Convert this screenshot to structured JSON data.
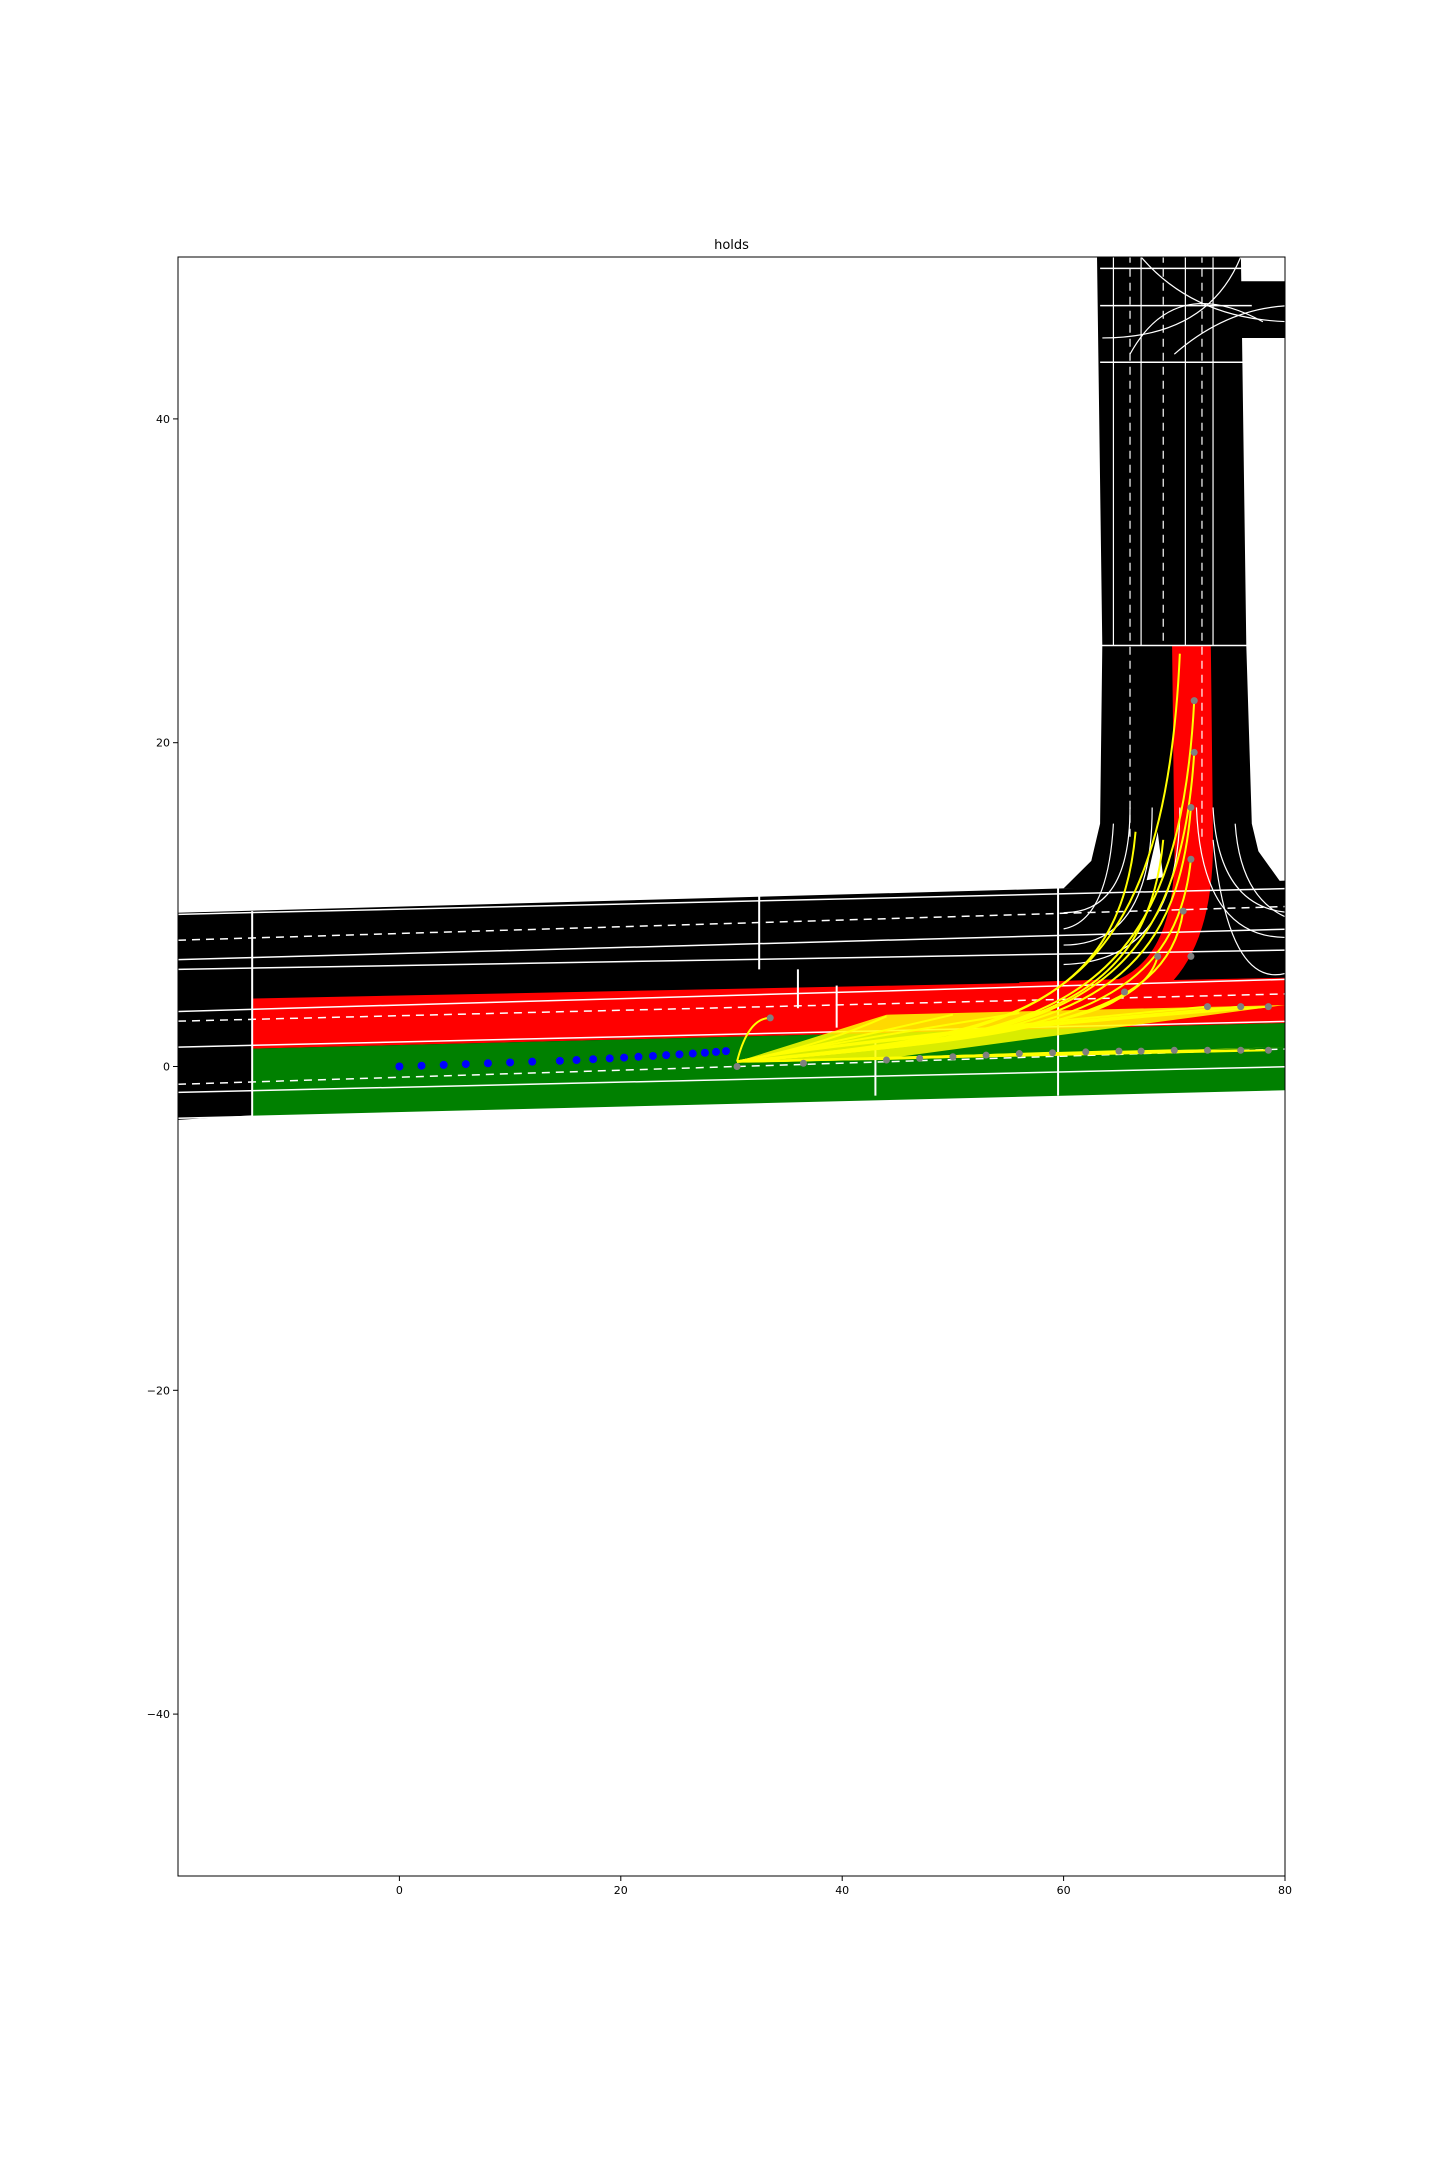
{
  "chart_data": {
    "type": "scatter",
    "title": "holds",
    "xlabel": "",
    "ylabel": "",
    "xlim": [
      -20,
      80
    ],
    "ylim": [
      -50,
      50
    ],
    "xticks": [
      0,
      20,
      40,
      60,
      80
    ],
    "yticks": [
      -40,
      -20,
      0,
      20,
      40
    ],
    "grid": false,
    "colors": {
      "road": "#000000",
      "lane_marking": "#ffffff",
      "holding_lane": "#ff0000",
      "ego_lane": "#008000",
      "candidate_paths": "#ffff00",
      "history_points": "#0000ff",
      "candidate_points": "#808080"
    },
    "history_points": {
      "x": [
        0,
        2,
        4,
        6,
        8,
        10,
        12,
        14.5,
        16,
        17.5,
        19,
        20.3,
        21.6,
        22.9,
        24.1,
        25.3,
        26.5,
        27.6,
        28.6,
        29.5
      ],
      "y": [
        0,
        0.05,
        0.1,
        0.15,
        0.2,
        0.25,
        0.3,
        0.35,
        0.4,
        0.45,
        0.5,
        0.55,
        0.6,
        0.65,
        0.7,
        0.75,
        0.8,
        0.85,
        0.9,
        0.95
      ]
    },
    "candidate_endpoints": {
      "x": [
        33.5,
        36.5,
        44,
        47,
        50,
        53,
        56,
        59,
        62,
        65,
        67,
        70,
        73,
        76,
        78.5,
        73,
        76,
        78.5,
        70.8,
        71.5,
        71.5,
        71.8,
        71.8,
        71.5,
        68.5,
        65.5
      ],
      "y": [
        3,
        0.2,
        0.4,
        0.5,
        0.6,
        0.7,
        0.8,
        0.85,
        0.9,
        0.95,
        0.95,
        1.0,
        1.0,
        1.0,
        1.0,
        3.7,
        3.7,
        3.7,
        9.6,
        12.8,
        16,
        19.4,
        22.6,
        6.8,
        6.8,
        4.6
      ]
    },
    "candidate_paths_start": [
      30.5,
      0.3
    ],
    "candidate_path_ends": [
      [
        70.8,
        9.6
      ],
      [
        71.5,
        12.8
      ],
      [
        71.5,
        16
      ],
      [
        71.8,
        19.4
      ],
      [
        71.8,
        22.6
      ],
      [
        68.5,
        6.8
      ],
      [
        65.5,
        4.6
      ],
      [
        70.5,
        25.5
      ],
      [
        66.5,
        14.5
      ],
      [
        69,
        14
      ]
    ],
    "straight_path_ends": [
      [
        78.5,
        1.0
      ],
      [
        76,
        1.0
      ],
      [
        73,
        1.0
      ],
      [
        70,
        1.0
      ],
      [
        65,
        0.95
      ],
      [
        59,
        0.85
      ],
      [
        78.5,
        3.7
      ],
      [
        76,
        3.7
      ],
      [
        73,
        3.7
      ],
      [
        56,
        3.3
      ],
      [
        50,
        3.2
      ],
      [
        44,
        3.1
      ]
    ]
  }
}
